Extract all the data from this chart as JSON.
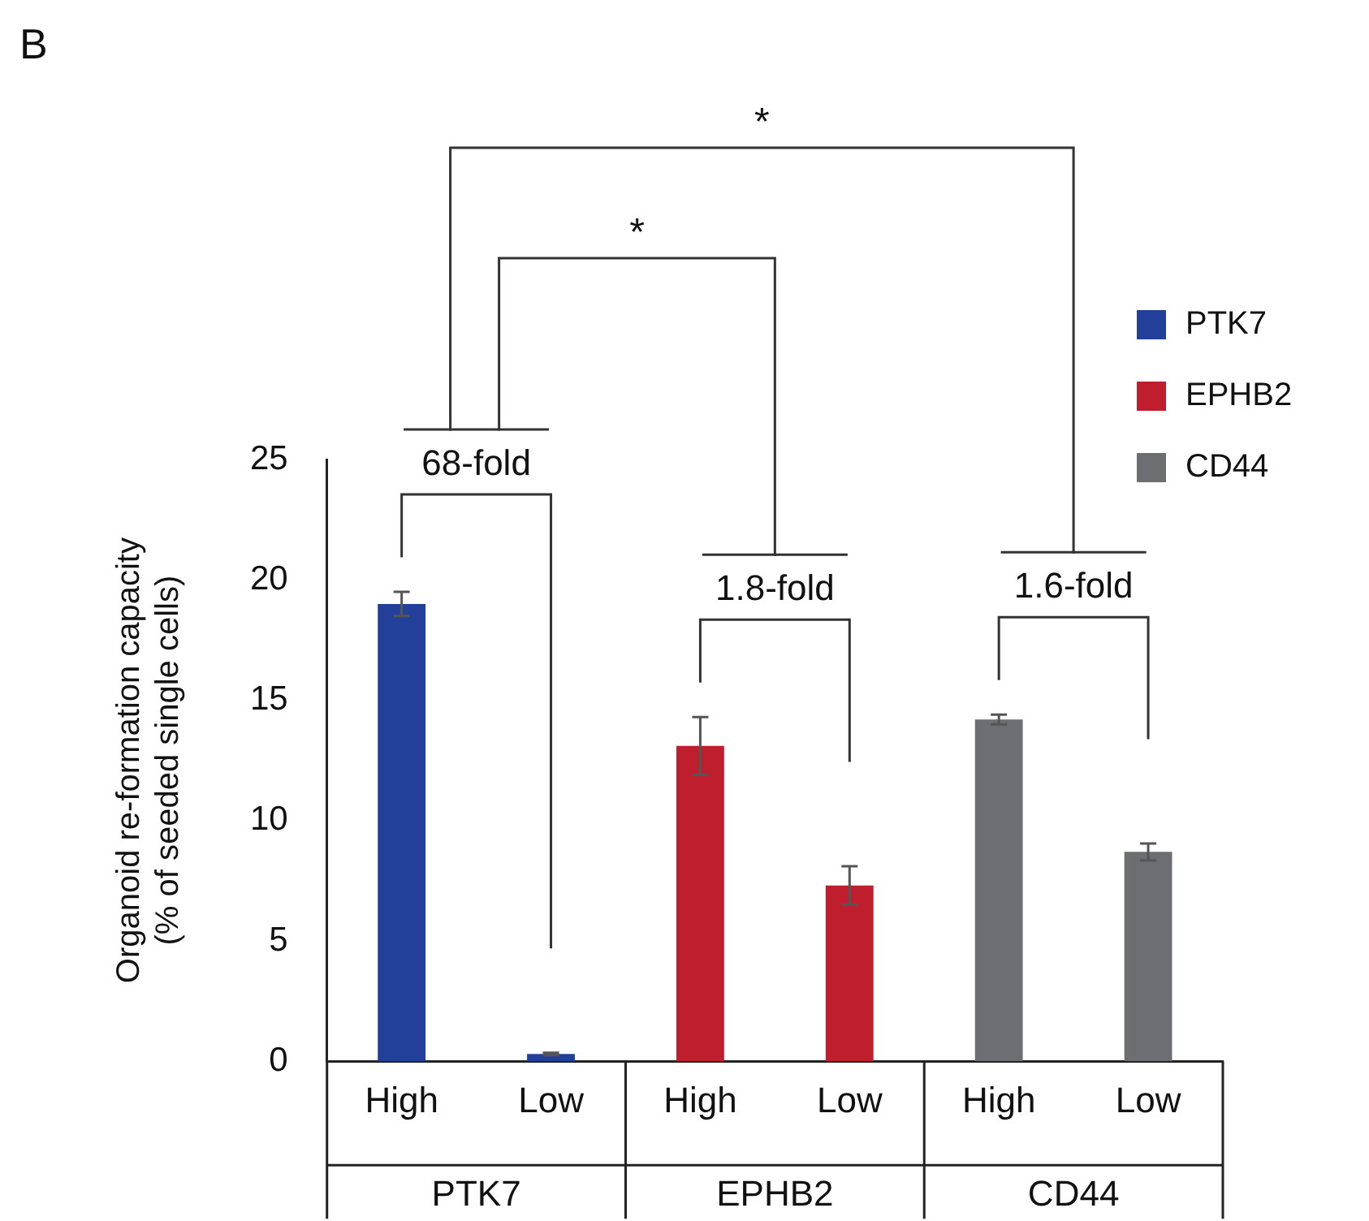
{
  "chart_data": {
    "type": "bar",
    "title": "B",
    "ylabel": "Organoid re-formation capacity\n(% of seeded single cells)",
    "categories": [
      "High",
      "Low",
      "High",
      "Low",
      "High",
      "Low"
    ],
    "series": [
      {
        "name": "PTK7",
        "color": "#22409a",
        "values": [
          19.0,
          0.3,
          null,
          null,
          null,
          null
        ],
        "errors": [
          0.5,
          0.05,
          null,
          null,
          null,
          null
        ]
      },
      {
        "name": "EPHB2",
        "color": "#be1e2d",
        "values": [
          null,
          null,
          13.1,
          7.3,
          null,
          null
        ],
        "errors": [
          null,
          null,
          1.2,
          0.8,
          null,
          null
        ]
      },
      {
        "name": "CD44",
        "color": "#6d6e71",
        "values": [
          null,
          null,
          null,
          null,
          14.2,
          8.7
        ],
        "errors": [
          null,
          null,
          null,
          null,
          0.2,
          0.35
        ]
      }
    ],
    "ylim": [
      0,
      25
    ],
    "yticks": [
      0,
      5,
      10,
      15,
      20,
      25
    ],
    "grid": false,
    "legend": "right",
    "annotations": [
      "68-fold",
      "1.8-fold",
      "1.6-fold",
      "*",
      "*"
    ]
  }
}
